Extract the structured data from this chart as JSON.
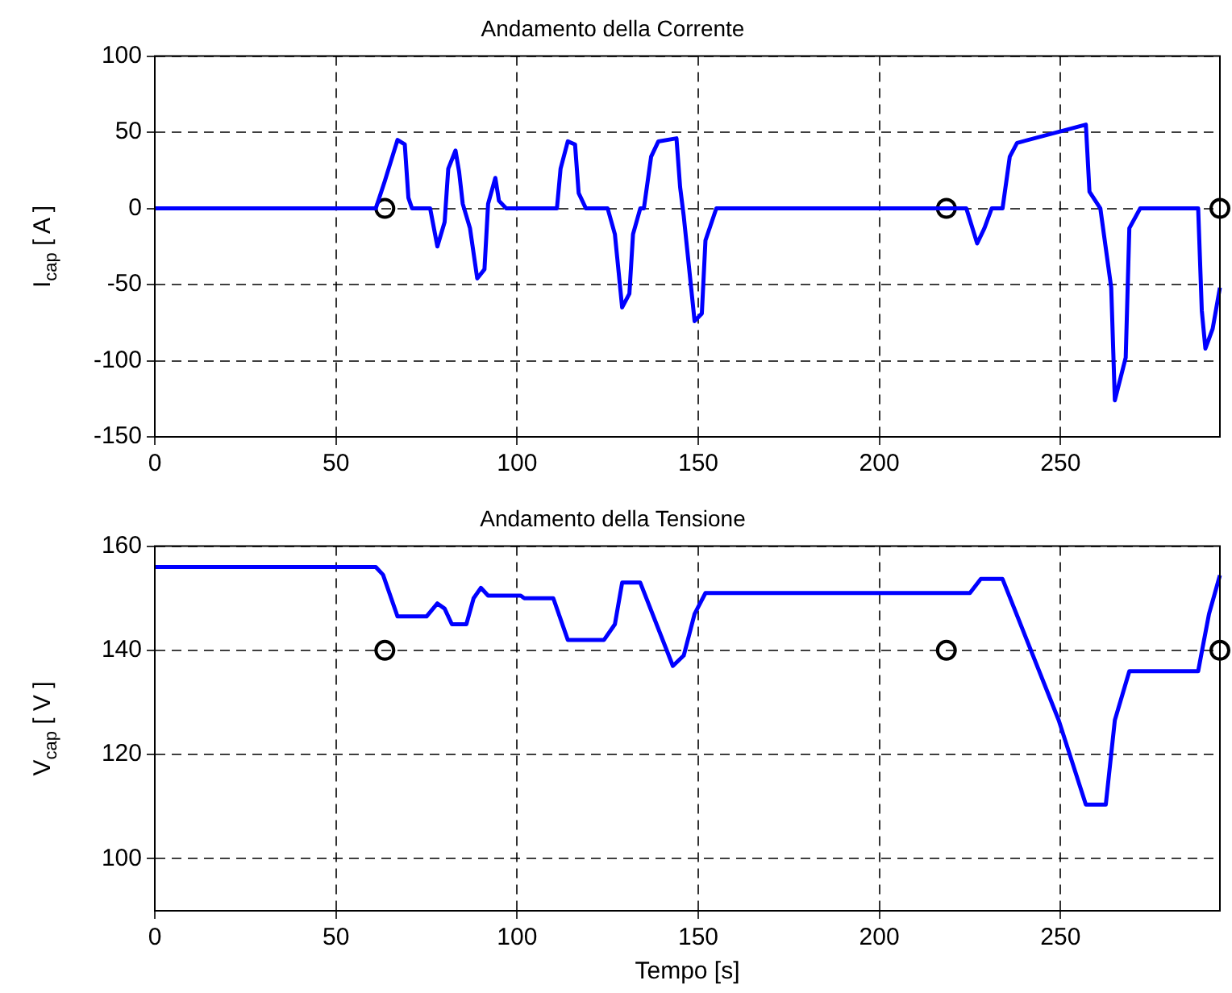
{
  "chart_data": [
    {
      "type": "line",
      "title": "Andamento della Corrente",
      "ylabel": "I$_{cap}$  [ A ]",
      "xlim": [
        0,
        294
      ],
      "xticks": [
        0,
        50,
        100,
        150,
        200,
        250
      ],
      "ylim": [
        -150,
        100
      ],
      "yticks": [
        -150,
        -100,
        -50,
        0,
        50,
        100
      ],
      "grid": true,
      "series": [
        {
          "color": "#0000ff",
          "x": [
            0,
            25,
            61,
            63.5,
            67,
            69,
            70,
            71,
            76,
            78,
            80,
            81,
            83,
            84,
            85,
            87,
            89,
            91,
            92,
            94,
            95,
            97,
            111,
            112,
            114,
            116,
            117,
            119,
            125,
            127,
            129,
            131,
            132,
            134,
            135,
            137,
            139,
            144,
            145,
            146,
            149,
            151,
            152,
            155,
            180,
            217,
            224,
            227,
            229,
            231,
            234,
            236,
            238,
            257,
            258,
            261,
            264,
            265,
            268,
            269,
            272,
            288,
            289,
            290,
            292,
            294
          ],
          "values": [
            0,
            0,
            0,
            18,
            45,
            42,
            7,
            0,
            0,
            -25,
            -9,
            26,
            38,
            24,
            3,
            -13,
            -46,
            -40,
            3,
            20,
            5,
            0,
            0,
            26,
            44,
            42,
            10,
            0,
            0,
            -17,
            -65,
            -56,
            -17,
            0,
            0,
            34,
            44,
            46,
            14,
            -5,
            -74,
            -69,
            -21,
            0,
            0,
            0,
            0,
            -23,
            -13,
            0,
            0,
            34,
            43,
            55,
            11,
            0,
            -52,
            -126,
            -98,
            -13,
            0,
            0,
            -67,
            -92,
            -79,
            -52
          ]
        },
        {
          "type": "scatter",
          "color": "#000000",
          "marker": "circle",
          "x": [
            63.5,
            218.5,
            294
          ],
          "values": [
            0,
            0,
            0
          ]
        }
      ]
    },
    {
      "type": "line",
      "title": "Andamento della Tensione",
      "xlabel": "Tempo [s]",
      "ylabel": "V$_{cap}$  [ V ]",
      "xlim": [
        0,
        294
      ],
      "xticks": [
        0,
        50,
        100,
        150,
        200,
        250
      ],
      "ylim": [
        90,
        160
      ],
      "yticks": [
        100,
        120,
        140,
        160
      ],
      "grid": true,
      "series": [
        {
          "color": "#0000ff",
          "x": [
            0,
            61,
            63,
            67,
            75,
            78,
            80,
            82,
            86,
            88,
            90,
            92,
            101,
            102,
            110,
            114,
            124,
            127,
            129,
            134,
            143,
            146,
            149,
            152,
            225,
            228,
            234,
            249.5,
            257,
            262.5,
            265,
            269,
            272,
            288,
            289,
            291,
            294
          ],
          "values": [
            156,
            156,
            154.5,
            146.5,
            146.5,
            149,
            148,
            145,
            145,
            150,
            152,
            150.5,
            150.5,
            150,
            150,
            142,
            142,
            145,
            153,
            153,
            137,
            139,
            147,
            151,
            151,
            153.7,
            153.7,
            126.6,
            110.4,
            110.4,
            126.6,
            136,
            136,
            136,
            139.7,
            147,
            154.4
          ]
        },
        {
          "type": "scatter",
          "color": "#000000",
          "marker": "circle",
          "x": [
            63.5,
            218.5,
            294
          ],
          "values": [
            140,
            140,
            140
          ]
        }
      ]
    }
  ]
}
